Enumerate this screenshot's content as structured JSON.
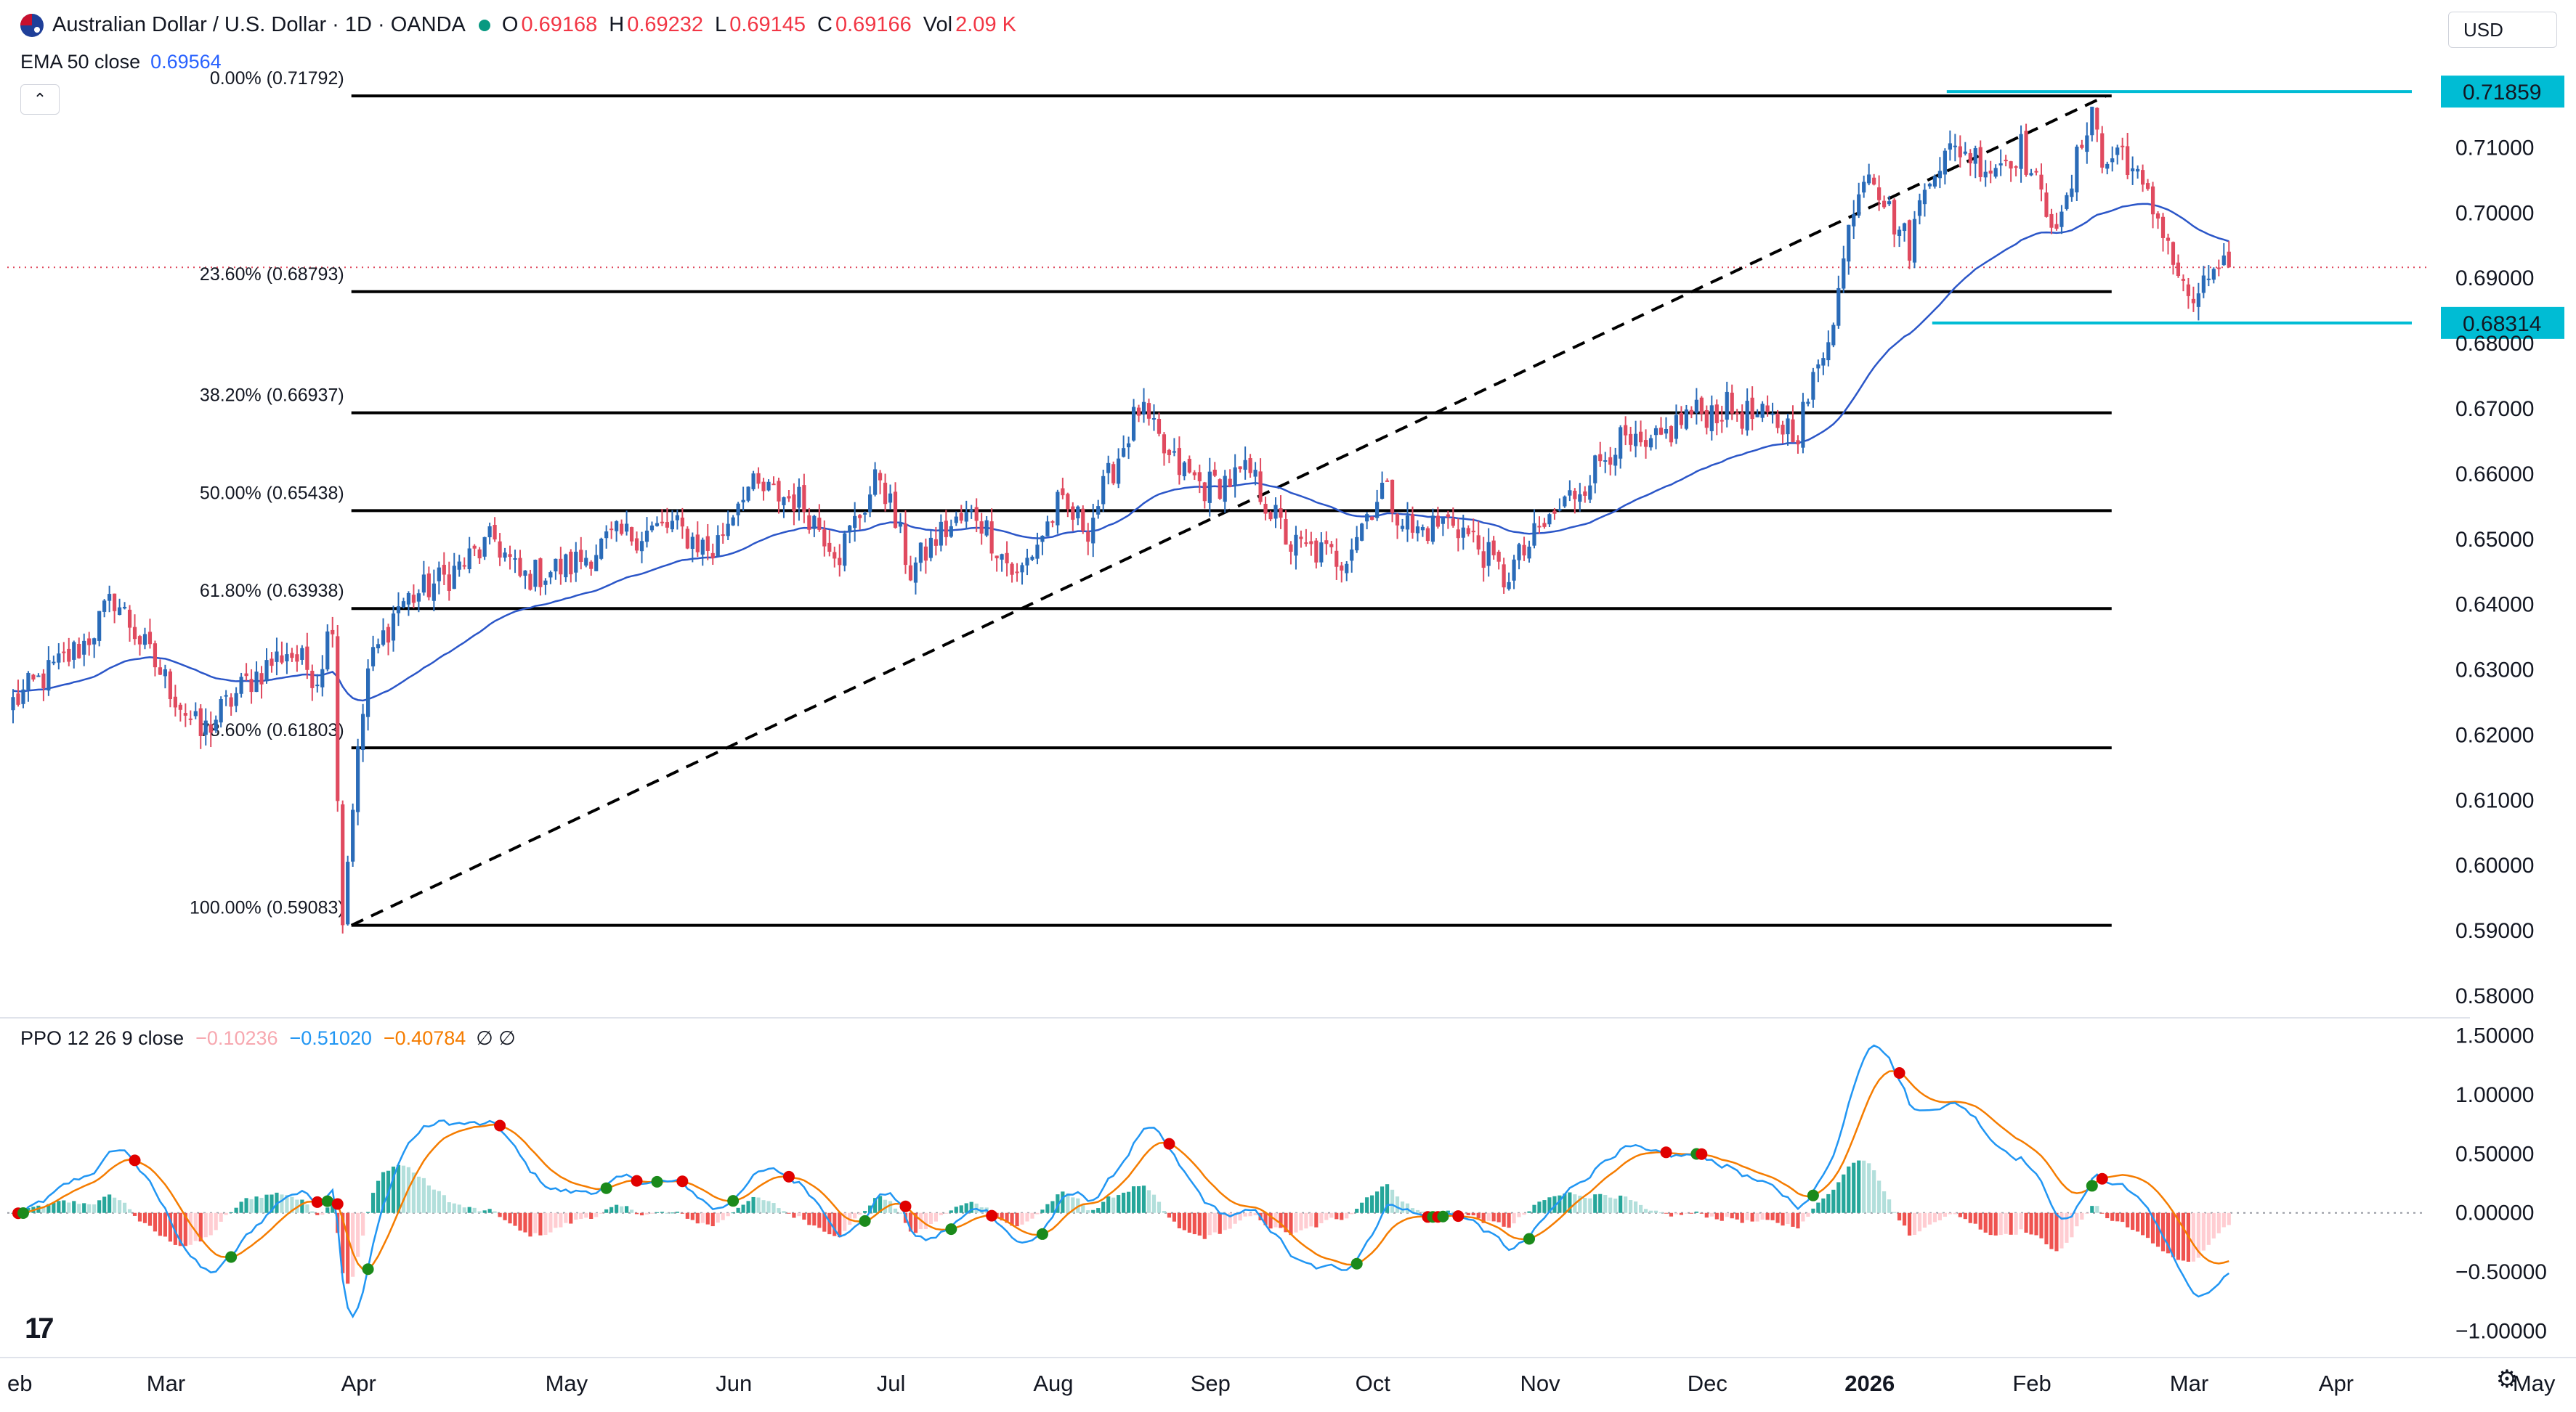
{
  "header": {
    "symbol_title": "Australian Dollar / U.S. Dollar · 1D · OANDA",
    "ohlc": [
      {
        "label": "O",
        "value": "0.69168"
      },
      {
        "label": "H",
        "value": "0.69232"
      },
      {
        "label": "L",
        "value": "0.69145"
      },
      {
        "label": "C",
        "value": "0.69166"
      }
    ],
    "volume_label": "Vol",
    "volume_value": "2.09 K",
    "ema_label": "EMA 50 close",
    "ema_value": "0.69564",
    "collapse_icon": "chevron-up-icon",
    "currency": "USD"
  },
  "ppo_legend": {
    "label": "PPO 12 26 9 close",
    "hist_value": "−0.10236",
    "ppo_value": "−0.51020",
    "signal_value": "−0.40784",
    "symbols": "∅ ∅"
  },
  "colors": {
    "up": "#2a6bb8",
    "down": "#e04a5f",
    "ema": "#2b56c8",
    "fib": "#000000",
    "price_marker": "#00bcd4",
    "ppo_line": "#2196f3",
    "ppo_signal": "#f57c00",
    "hist_pos_strong": "#26a69a",
    "hist_pos_weak": "#b2dfdb",
    "hist_neg_strong": "#ef5350",
    "hist_neg_weak": "#ffcdd2",
    "cross_up": "#1b8a1b",
    "cross_down": "#e00000"
  },
  "chart_data": [
    {
      "type": "candlestick",
      "title": "Australian Dollar / U.S. Dollar · 1D · OANDA",
      "ylim": [
        0.578,
        0.7215
      ],
      "y_ticks": [
        "0.58000",
        "0.59000",
        "0.60000",
        "0.61000",
        "0.62000",
        "0.63000",
        "0.64000",
        "0.65000",
        "0.66000",
        "0.67000",
        "0.68000",
        "0.69000",
        "0.70000",
        "0.71000"
      ],
      "x_ticks": [
        "eb",
        "Mar",
        "Apr",
        "May",
        "Jun",
        "Jul",
        "Aug",
        "Sep",
        "Oct",
        "Nov",
        "Dec",
        "2026",
        "Feb",
        "Mar",
        "Apr",
        "May"
      ],
      "price_markers": [
        "0.71859",
        "0.68314"
      ],
      "fib_levels": [
        {
          "label": "0.00% (0.71792)",
          "price": 0.71792
        },
        {
          "label": "23.60% (0.68793)",
          "price": 0.68793
        },
        {
          "label": "38.20% (0.66937)",
          "price": 0.66937
        },
        {
          "label": "50.00% (0.65438)",
          "price": 0.65438
        },
        {
          "label": "61.80% (0.63938)",
          "price": 0.63938
        },
        {
          "label": "78.60% (0.61803)",
          "price": 0.61803
        },
        {
          "label": "100.00% (0.59083)",
          "price": 0.59083
        }
      ],
      "anchors": [
        [
          0,
          0.625
        ],
        [
          14,
          0.634
        ],
        [
          20,
          0.641
        ],
        [
          27,
          0.632
        ],
        [
          37,
          0.62
        ],
        [
          46,
          0.628
        ],
        [
          54,
          0.633
        ],
        [
          60,
          0.629
        ],
        [
          63,
          0.638
        ],
        [
          64,
          0.611
        ],
        [
          65,
          0.592
        ],
        [
          67,
          0.61
        ],
        [
          70,
          0.63
        ],
        [
          76,
          0.64
        ],
        [
          85,
          0.644
        ],
        [
          95,
          0.65
        ],
        [
          100,
          0.644
        ],
        [
          110,
          0.646
        ],
        [
          118,
          0.65
        ],
        [
          130,
          0.652
        ],
        [
          138,
          0.648
        ],
        [
          144,
          0.658
        ],
        [
          155,
          0.656
        ],
        [
          163,
          0.648
        ],
        [
          171,
          0.66
        ],
        [
          177,
          0.645
        ],
        [
          183,
          0.651
        ],
        [
          190,
          0.654
        ],
        [
          198,
          0.644
        ],
        [
          206,
          0.655
        ],
        [
          212,
          0.652
        ],
        [
          222,
          0.67
        ],
        [
          228,
          0.662
        ],
        [
          235,
          0.658
        ],
        [
          244,
          0.66
        ],
        [
          252,
          0.649
        ],
        [
          262,
          0.647
        ],
        [
          270,
          0.658
        ],
        [
          276,
          0.651
        ],
        [
          284,
          0.653
        ],
        [
          290,
          0.648
        ],
        [
          294,
          0.644
        ],
        [
          302,
          0.652
        ],
        [
          310,
          0.659
        ],
        [
          316,
          0.665
        ],
        [
          322,
          0.663
        ],
        [
          330,
          0.669
        ],
        [
          338,
          0.67
        ],
        [
          346,
          0.668
        ],
        [
          352,
          0.667
        ],
        [
          356,
          0.676
        ],
        [
          360,
          0.688
        ],
        [
          363,
          0.702
        ],
        [
          366,
          0.708
        ],
        [
          370,
          0.7
        ],
        [
          374,
          0.695
        ],
        [
          378,
          0.707
        ],
        [
          384,
          0.71
        ],
        [
          390,
          0.707
        ],
        [
          396,
          0.71
        ],
        [
          400,
          0.702
        ],
        [
          404,
          0.698
        ],
        [
          408,
          0.711
        ],
        [
          410,
          0.717
        ],
        [
          412,
          0.707
        ],
        [
          416,
          0.71
        ],
        [
          420,
          0.703
        ],
        [
          424,
          0.698
        ],
        [
          428,
          0.688
        ],
        [
          431,
          0.686
        ],
        [
          434,
          0.692
        ],
        [
          437,
          0.6917
        ]
      ],
      "ema50_last": 0.69564,
      "last_close": 0.69166
    },
    {
      "type": "line",
      "title": "PPO 12 26 9 close",
      "ylim": [
        -1.1,
        1.6
      ],
      "y_ticks": [
        "1.50000",
        "1.00000",
        "0.50000",
        "0.00000",
        "−0.50000",
        "−1.00000"
      ],
      "series": [
        {
          "name": "PPO",
          "last": -0.5102
        },
        {
          "name": "Signal",
          "last": -0.40784
        },
        {
          "name": "Histogram",
          "last": -0.10236
        }
      ]
    }
  ]
}
